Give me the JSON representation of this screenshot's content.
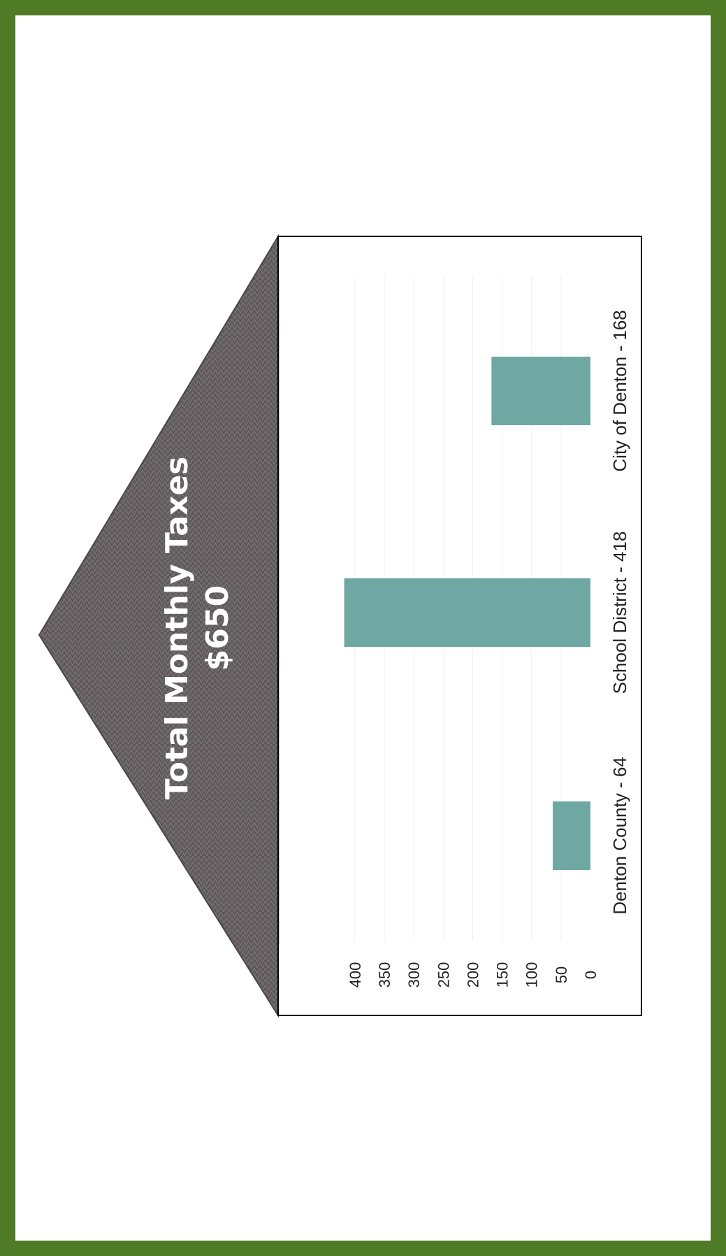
{
  "colors": {
    "border": "#4f7a26",
    "roof": "#615c5d",
    "bar": "#6fa8a3",
    "background": "#ffffff"
  },
  "title": {
    "line1": "Total Monthly Taxes",
    "line2": "$650"
  },
  "chart_data": {
    "type": "bar",
    "orientation": "vertical (figure rotated 90° counter-clockwise)",
    "categories": [
      "Denton County - 64",
      "School District - 418",
      "City of Denton - 168"
    ],
    "values": [
      64,
      418,
      168
    ],
    "yticks": [
      "0",
      "50",
      "100",
      "150",
      "200",
      "250",
      "300",
      "350",
      "400"
    ],
    "ylim": [
      0,
      450
    ],
    "grid": true,
    "legend": "none"
  }
}
